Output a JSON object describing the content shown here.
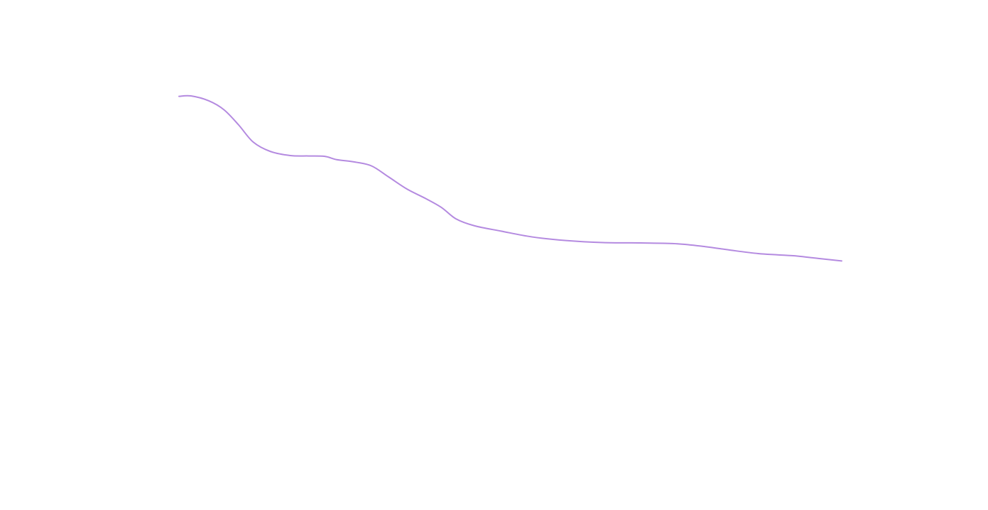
{
  "chart_data": {
    "type": "line",
    "title": "",
    "xlabel": "",
    "ylabel": "",
    "axes_visible": false,
    "grid": false,
    "legend": "none",
    "xlim": [
      0,
      1
    ],
    "ylim": [
      0,
      1
    ],
    "series": [
      {
        "color": "#b48ae0",
        "x": [
          0.0,
          0.018,
          0.045,
          0.068,
          0.09,
          0.112,
          0.138,
          0.168,
          0.196,
          0.22,
          0.238,
          0.262,
          0.29,
          0.316,
          0.344,
          0.372,
          0.396,
          0.418,
          0.446,
          0.486,
          0.532,
          0.584,
          0.64,
          0.697,
          0.752,
          0.794,
          0.834,
          0.874,
          0.903,
          0.933,
          0.965,
          1.0
        ],
        "y": [
          0.825,
          0.826,
          0.814,
          0.792,
          0.755,
          0.713,
          0.69,
          0.68,
          0.679,
          0.678,
          0.67,
          0.665,
          0.655,
          0.628,
          0.598,
          0.575,
          0.553,
          0.525,
          0.508,
          0.495,
          0.481,
          0.472,
          0.467,
          0.466,
          0.464,
          0.457,
          0.448,
          0.44,
          0.437,
          0.434,
          0.428,
          0.422
        ]
      }
    ]
  }
}
